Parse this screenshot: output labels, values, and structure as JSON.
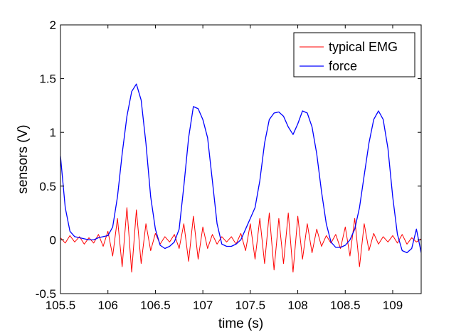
{
  "chart_data": {
    "type": "line",
    "title": "",
    "xlabel": "time (s)",
    "ylabel": "sensors (V)",
    "xlim": [
      105.5,
      109.3
    ],
    "ylim": [
      -0.5,
      2
    ],
    "xticks": [
      105.5,
      106,
      106.5,
      107,
      107.5,
      108,
      108.5,
      109
    ],
    "xtick_labels": [
      "105.5",
      "106",
      "106.5",
      "107",
      "107.5",
      "108",
      "108.5",
      "109"
    ],
    "yticks": [
      -0.5,
      0,
      0.5,
      1,
      1.5,
      2
    ],
    "ytick_labels": [
      "-0.5",
      "0",
      "0.5",
      "1",
      "1.5",
      "2"
    ],
    "grid": false,
    "legend_position": "top-right",
    "series": [
      {
        "name": "typical EMG",
        "color": "#ff0000",
        "x": [
          105.5,
          105.55,
          105.6,
          105.65,
          105.7,
          105.75,
          105.8,
          105.85,
          105.9,
          105.95,
          106.0,
          106.05,
          106.1,
          106.15,
          106.2,
          106.25,
          106.3,
          106.35,
          106.4,
          106.45,
          106.5,
          106.55,
          106.6,
          106.65,
          106.7,
          106.75,
          106.8,
          106.85,
          106.9,
          106.95,
          107.0,
          107.05,
          107.1,
          107.15,
          107.2,
          107.25,
          107.3,
          107.35,
          107.4,
          107.45,
          107.5,
          107.55,
          107.6,
          107.65,
          107.7,
          107.75,
          107.8,
          107.85,
          107.9,
          107.95,
          108.0,
          108.05,
          108.1,
          108.15,
          108.2,
          108.25,
          108.3,
          108.35,
          108.4,
          108.45,
          108.5,
          108.55,
          108.6,
          108.65,
          108.7,
          108.75,
          108.8,
          108.85,
          108.9,
          108.95,
          109.0,
          109.05,
          109.1,
          109.15,
          109.2,
          109.25,
          109.3
        ],
        "values": [
          0.02,
          -0.03,
          0.04,
          -0.02,
          0.03,
          -0.04,
          0.02,
          -0.03,
          0.05,
          -0.06,
          0.08,
          -0.15,
          0.2,
          -0.25,
          0.3,
          -0.3,
          0.28,
          -0.22,
          0.15,
          -0.1,
          0.06,
          -0.04,
          0.03,
          -0.02,
          0.05,
          -0.08,
          0.15,
          -0.2,
          0.22,
          -0.18,
          0.12,
          -0.08,
          0.05,
          -0.04,
          0.03,
          -0.02,
          0.03,
          -0.04,
          0.06,
          -0.1,
          0.15,
          -0.18,
          0.2,
          -0.22,
          0.25,
          -0.28,
          0.2,
          -0.22,
          0.25,
          -0.3,
          0.22,
          -0.18,
          0.15,
          -0.12,
          0.1,
          -0.06,
          0.04,
          -0.03,
          0.05,
          -0.08,
          0.12,
          -0.15,
          0.2,
          -0.25,
          0.15,
          -0.1,
          0.06,
          -0.04,
          0.03,
          -0.02,
          0.04,
          -0.03,
          0.05,
          -0.04,
          0.02,
          -0.02,
          0.01
        ]
      },
      {
        "name": "force",
        "color": "#0000ff",
        "x": [
          105.5,
          105.55,
          105.6,
          105.65,
          105.7,
          105.75,
          105.8,
          105.85,
          105.9,
          105.95,
          106.0,
          106.05,
          106.1,
          106.15,
          106.2,
          106.25,
          106.3,
          106.35,
          106.4,
          106.45,
          106.5,
          106.55,
          106.6,
          106.65,
          106.7,
          106.75,
          106.8,
          106.85,
          106.9,
          106.95,
          107.0,
          107.05,
          107.1,
          107.15,
          107.2,
          107.25,
          107.3,
          107.35,
          107.4,
          107.45,
          107.5,
          107.55,
          107.6,
          107.65,
          107.7,
          107.75,
          107.8,
          107.85,
          107.9,
          107.95,
          108.0,
          108.05,
          108.1,
          108.15,
          108.2,
          108.25,
          108.3,
          108.35,
          108.4,
          108.45,
          108.5,
          108.55,
          108.6,
          108.65,
          108.7,
          108.75,
          108.8,
          108.85,
          108.9,
          108.95,
          109.0,
          109.05,
          109.1,
          109.15,
          109.2,
          109.25,
          109.3
        ],
        "values": [
          0.78,
          0.3,
          0.08,
          0.03,
          0.02,
          0.01,
          0.0,
          0.0,
          0.02,
          0.03,
          0.04,
          0.12,
          0.4,
          0.8,
          1.15,
          1.38,
          1.45,
          1.3,
          0.9,
          0.4,
          0.1,
          -0.05,
          -0.08,
          -0.06,
          -0.02,
          0.1,
          0.5,
          0.95,
          1.24,
          1.22,
          1.12,
          0.95,
          0.55,
          0.15,
          -0.04,
          -0.06,
          -0.06,
          -0.04,
          0.0,
          0.1,
          0.2,
          0.3,
          0.55,
          0.9,
          1.12,
          1.18,
          1.19,
          1.15,
          1.05,
          0.98,
          1.08,
          1.2,
          1.18,
          1.05,
          0.8,
          0.45,
          0.15,
          -0.02,
          -0.07,
          -0.07,
          -0.05,
          0.0,
          0.1,
          0.3,
          0.6,
          0.9,
          1.12,
          1.2,
          1.12,
          0.85,
          0.4,
          0.05,
          -0.1,
          -0.12,
          -0.08,
          0.1,
          -0.12
        ]
      }
    ]
  }
}
